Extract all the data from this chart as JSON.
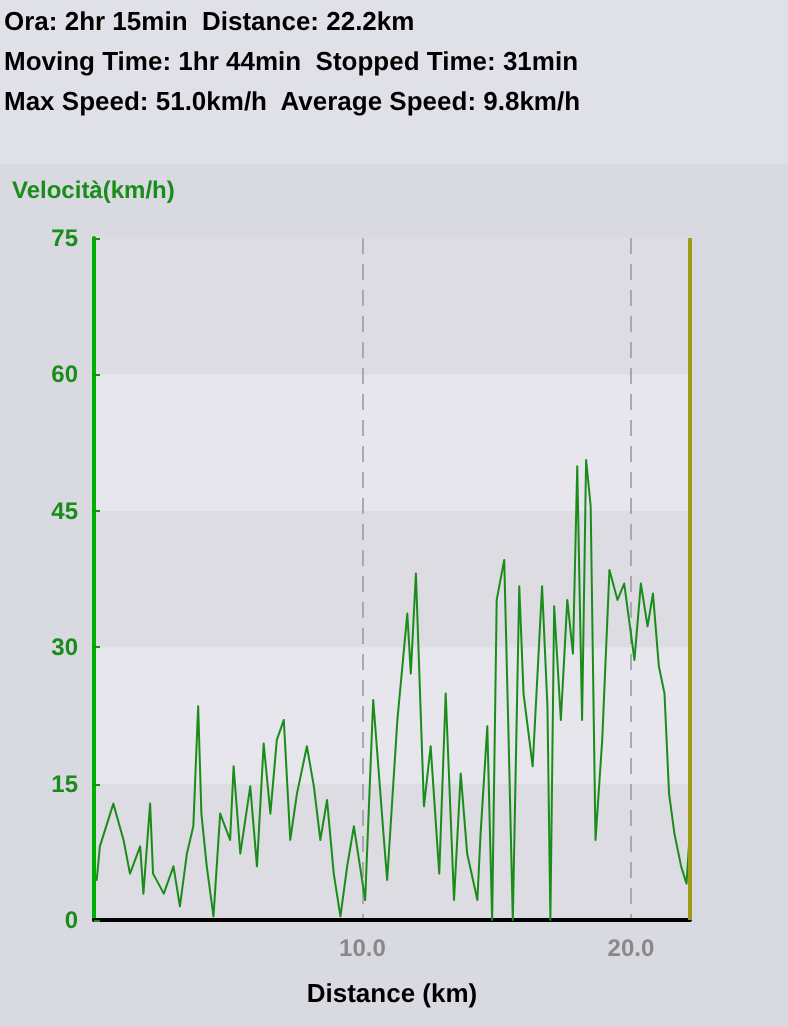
{
  "chart_data": {
    "type": "line",
    "annotations": [
      "Ora: 2hr 15min  Distance: 22.2km",
      "Moving Time: 1hr 44min  Stopped Time: 31min",
      "Max Speed: 51.0km/h  Average Speed: 9.8km/h"
    ],
    "ylabel": "Velocità(km/h)",
    "xlabel": "Distance (km)",
    "xlim": [
      0,
      22.2
    ],
    "xticks": [
      {
        "value": 10,
        "label": "10.0"
      },
      {
        "value": 20,
        "label": "20.0"
      }
    ],
    "ylim": [
      0,
      75
    ],
    "yticks": [
      0,
      15,
      30,
      45,
      60,
      75
    ],
    "grid": true,
    "marker": "none",
    "line_style": "solid",
    "ref_lines": [
      {
        "axis": "x",
        "value": 22.2,
        "color": "#a09a18"
      }
    ],
    "series": [
      {
        "color": "#1a8c1a",
        "x": [
          0.1,
          0.22,
          0.72,
          1.1,
          1.34,
          1.72,
          1.84,
          2.09,
          2.2,
          2.6,
          2.96,
          3.2,
          3.46,
          3.7,
          3.88,
          4.0,
          4.2,
          4.45,
          4.7,
          5.07,
          5.2,
          5.45,
          5.82,
          6.07,
          6.32,
          6.57,
          6.81,
          7.07,
          7.31,
          7.56,
          7.93,
          8.19,
          8.43,
          8.68,
          8.93,
          9.18,
          9.43,
          9.68,
          10.1,
          10.4,
          10.8,
          10.92,
          11.3,
          11.67,
          11.8,
          11.99,
          12.29,
          12.54,
          12.86,
          13.1,
          13.41,
          13.66,
          13.9,
          14.28,
          14.4,
          14.65,
          14.83,
          15.0,
          15.28,
          15.45,
          15.6,
          15.84,
          16.0,
          16.34,
          16.69,
          16.89,
          17.0,
          17.14,
          17.39,
          17.63,
          17.84,
          18.0,
          18.18,
          18.33,
          18.5,
          18.68,
          18.93,
          19.2,
          19.5,
          19.75,
          20.13,
          20.37,
          20.62,
          20.82,
          21.04,
          21.25,
          21.42,
          21.62,
          21.87,
          22.07,
          22.16,
          22.19
        ],
        "values": [
          4.4,
          8.1,
          12.8,
          8.8,
          5.1,
          8.1,
          2.9,
          12.8,
          5.1,
          2.9,
          5.9,
          1.5,
          7.3,
          10.3,
          23.5,
          11.7,
          5.9,
          0.4,
          11.7,
          8.8,
          16.9,
          7.3,
          14.7,
          5.9,
          19.4,
          11.7,
          19.8,
          22,
          8.8,
          13.9,
          19.1,
          14.7,
          8.8,
          13.2,
          5.1,
          0.4,
          5.9,
          10.3,
          2.2,
          24.2,
          8.8,
          4.4,
          22,
          33.7,
          27.1,
          38.1,
          12.5,
          19.1,
          5.1,
          24.9,
          2.2,
          16.1,
          7.3,
          2.2,
          9.5,
          21.3,
          0,
          35.2,
          39.6,
          19.1,
          0,
          36.7,
          24.9,
          16.9,
          36.7,
          23.5,
          0,
          34.5,
          22,
          35.2,
          29.3,
          49.9,
          22,
          50.6,
          45.5,
          8.8,
          19.8,
          38.5,
          35.2,
          37,
          28.6,
          37,
          32.3,
          35.9,
          27.9,
          24.9,
          13.9,
          9.5,
          5.9,
          4,
          8.1,
          3.7
        ]
      }
    ]
  }
}
